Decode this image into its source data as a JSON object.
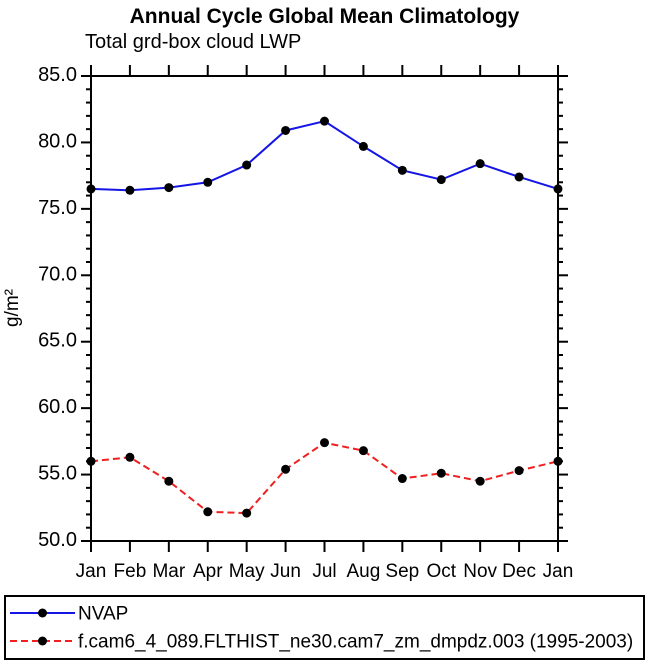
{
  "header": {
    "title": "Annual Cycle Global Mean Climatology",
    "subtitle": "Total grd-box cloud LWP"
  },
  "chart_data": {
    "type": "line",
    "categories": [
      "Jan",
      "Feb",
      "Mar",
      "Apr",
      "May",
      "Jun",
      "Jul",
      "Aug",
      "Sep",
      "Oct",
      "Nov",
      "Dec",
      "Jan"
    ],
    "series": [
      {
        "name": "NVAP",
        "color": "#1515e6",
        "line_style": "solid",
        "marker": "filled-circle",
        "marker_color": "#000000",
        "values": [
          76.5,
          76.4,
          76.6,
          77.0,
          78.3,
          80.9,
          81.6,
          79.7,
          77.9,
          77.2,
          78.4,
          77.4,
          76.5
        ]
      },
      {
        "name": "f.cam6_4_089.FLTHIST_ne30.cam7_zm_dmpdz.003 (1995-2003)",
        "color": "#ee2020",
        "line_style": "dashed",
        "marker": "filled-circle",
        "marker_color": "#000000",
        "values": [
          56.0,
          56.3,
          54.5,
          52.2,
          52.1,
          55.4,
          57.4,
          56.8,
          54.7,
          55.1,
          54.5,
          55.3,
          56.0
        ]
      }
    ],
    "xlabel": "",
    "ylabel": "g/m²",
    "ylim": [
      50.0,
      85.0
    ],
    "ytick_step": 5.0,
    "yminor_step": 1.0,
    "ytick_labels": [
      "85.0",
      "80.0",
      "75.0",
      "70.0",
      "65.0",
      "60.0",
      "55.0",
      "50.0"
    ],
    "grid": false,
    "legend_position": "bottom-box",
    "axis_color": "#000000",
    "background": "#ffffff"
  }
}
